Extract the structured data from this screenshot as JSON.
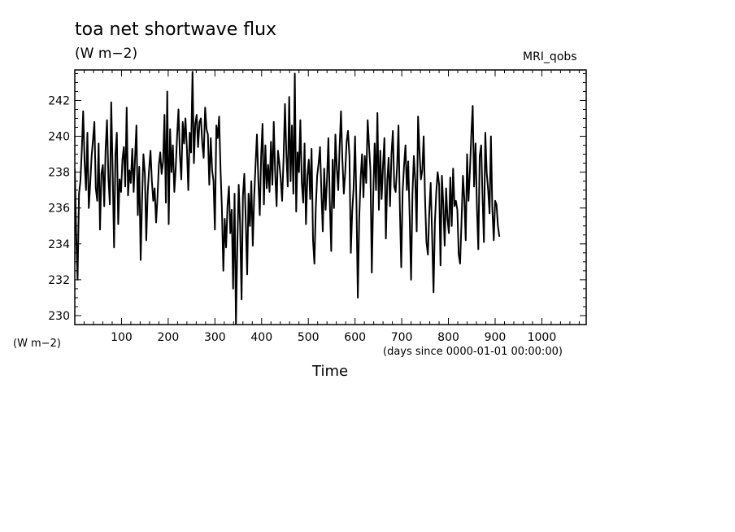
{
  "chart_data": {
    "type": "line",
    "title": "toa net shortwave flux",
    "units": "(W m−2)",
    "source": "MRI_qobs",
    "ylabel": "(W m−2)",
    "xlabel": "Time",
    "xunits": "(days since 0000-01-01 00:00:00)",
    "xlim": [
      0,
      1095
    ],
    "ylim": [
      229.5,
      243.7
    ],
    "xticks": [
      100,
      200,
      300,
      400,
      500,
      600,
      700,
      800,
      900,
      1000
    ],
    "yticks": [
      230,
      232,
      234,
      236,
      238,
      240,
      242
    ],
    "grid": false,
    "series": [
      {
        "x_start": 0,
        "x_step": 3,
        "values": [
          238.2,
          234.5,
          232.0,
          236.8,
          237.5,
          239.2,
          241.4,
          238.5,
          237.0,
          240.2,
          236.0,
          237.4,
          238.9,
          239.8,
          240.8,
          237.1,
          236.4,
          239.6,
          234.8,
          237.9,
          238.4,
          236.1,
          239.3,
          240.9,
          237.6,
          236.2,
          241.9,
          238.2,
          233.8,
          239.0,
          240.2,
          235.1,
          237.6,
          236.9,
          238.7,
          239.4,
          237.2,
          241.6,
          236.7,
          238.1,
          237.4,
          239.3,
          236.9,
          238.8,
          240.6,
          235.6,
          238.3,
          233.1,
          236.4,
          239.0,
          237.9,
          234.2,
          236.8,
          238.1,
          239.2,
          237.5,
          236.4,
          237.1,
          235.2,
          236.6,
          238.4,
          239.1,
          237.9,
          238.6,
          241.2,
          236.3,
          242.5,
          235.1,
          240.4,
          238.0,
          239.5,
          236.9,
          238.2,
          240.0,
          241.5,
          239.0,
          237.6,
          240.8,
          239.6,
          241.0,
          239.3,
          237.0,
          240.2,
          239.1,
          243.6,
          238.5,
          240.7,
          241.2,
          239.4,
          240.8,
          241.0,
          239.6,
          238.8,
          241.6,
          240.4,
          240.1,
          237.3,
          239.9,
          238.1,
          237.5,
          234.8,
          240.6,
          239.9,
          241.1,
          238.2,
          236.0,
          232.5,
          235.4,
          233.8,
          236.1,
          237.2,
          234.6,
          235.9,
          231.5,
          236.8,
          229.5,
          233.9,
          237.3,
          235.1,
          230.9,
          236.7,
          237.9,
          235.4,
          232.3,
          236.8,
          235.0,
          237.5,
          233.9,
          236.6,
          238.4,
          240.1,
          237.5,
          235.6,
          238.9,
          240.7,
          236.2,
          239.5,
          237.1,
          238.4,
          236.9,
          239.7,
          237.3,
          240.8,
          238.0,
          236.1,
          239.2,
          238.5,
          237.6,
          236.4,
          238.8,
          241.8,
          239.0,
          237.2,
          242.2,
          237.5,
          240.6,
          236.8,
          243.5,
          235.8,
          239.1,
          238.0,
          240.9,
          237.4,
          236.3,
          239.6,
          235.1,
          237.8,
          238.7,
          236.5,
          239.3,
          234.2,
          232.9,
          236.0,
          237.8,
          238.5,
          239.4,
          236.9,
          234.7,
          238.2,
          235.9,
          237.6,
          239.9,
          236.4,
          233.6,
          238.7,
          236.0,
          240.1,
          238.2,
          237.0,
          239.4,
          241.4,
          238.7,
          236.8,
          238.0,
          239.7,
          240.3,
          238.9,
          233.5,
          235.8,
          237.1,
          240.0,
          236.3,
          231.0,
          235.4,
          237.7,
          239.0,
          236.6,
          238.9,
          237.4,
          240.9,
          239.5,
          238.1,
          232.4,
          236.8,
          239.6,
          237.0,
          241.3,
          235.9,
          239.2,
          236.5,
          238.4,
          239.9,
          234.3,
          237.5,
          238.8,
          236.1,
          239.0,
          240.3,
          237.2,
          236.9,
          238.3,
          240.6,
          236.0,
          232.7,
          236.9,
          238.4,
          239.5,
          237.0,
          238.6,
          235.4,
          232.0,
          236.8,
          238.9,
          237.5,
          234.7,
          241.1,
          239.2,
          237.6,
          238.1,
          240.0,
          236.5,
          234.1,
          233.4,
          235.8,
          237.4,
          234.6,
          231.3,
          235.2,
          236.9,
          238.0,
          237.3,
          232.8,
          237.8,
          236.2,
          233.9,
          237.1,
          235.4,
          234.6,
          237.7,
          235.0,
          238.2,
          236.1,
          236.4,
          235.9,
          233.4,
          232.9,
          235.2,
          237.8,
          236.5,
          234.2,
          239.0,
          236.4,
          238.1,
          240.1,
          241.7,
          237.2,
          239.6,
          236.0,
          233.7,
          238.9,
          239.5,
          236.6,
          234.1,
          240.2,
          238.0,
          237.0,
          235.7,
          240.0,
          236.0,
          234.2,
          236.4,
          236.2,
          235.0,
          234.4
        ]
      }
    ]
  }
}
